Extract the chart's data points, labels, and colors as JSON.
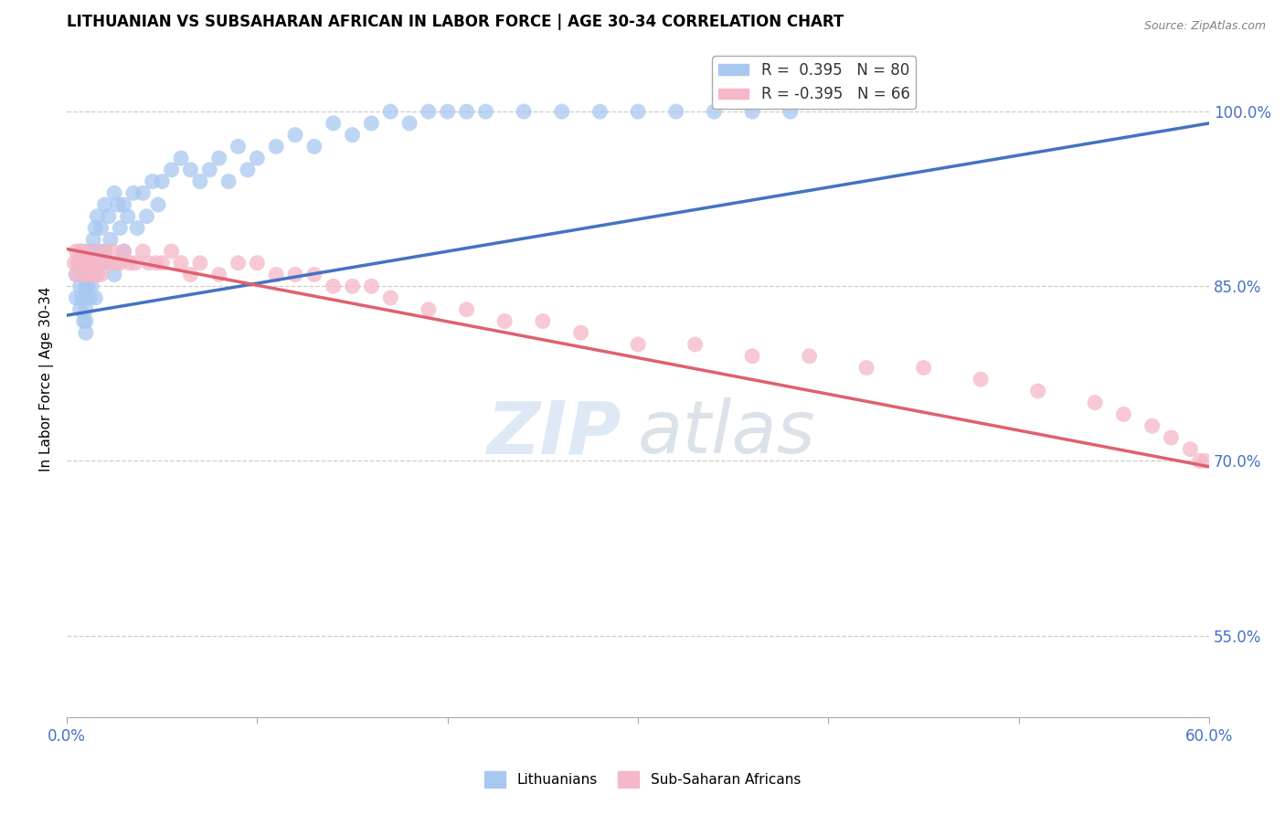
{
  "title": "LITHUANIAN VS SUBSAHARAN AFRICAN IN LABOR FORCE | AGE 30-34 CORRELATION CHART",
  "source": "Source: ZipAtlas.com",
  "ylabel": "In Labor Force | Age 30-34",
  "xlim": [
    0.0,
    0.6
  ],
  "ylim": [
    0.48,
    1.06
  ],
  "xticks": [
    0.0,
    0.1,
    0.2,
    0.3,
    0.4,
    0.5,
    0.6
  ],
  "yticks_right": [
    0.55,
    0.7,
    0.85,
    1.0
  ],
  "ytick_right_labels": [
    "55.0%",
    "70.0%",
    "85.0%",
    "100.0%"
  ],
  "legend_blue_r": "0.395",
  "legend_blue_n": "80",
  "legend_pink_r": "-0.395",
  "legend_pink_n": "66",
  "blue_color": "#A8C8F0",
  "pink_color": "#F5B8C8",
  "blue_line_color": "#4472C4",
  "pink_line_color": "#E06070",
  "background_color": "#FFFFFF",
  "watermark_zip": "ZIP",
  "watermark_atlas": "atlas",
  "blue_scatter_x": [
    0.005,
    0.005,
    0.006,
    0.007,
    0.007,
    0.008,
    0.008,
    0.009,
    0.009,
    0.01,
    0.01,
    0.01,
    0.01,
    0.01,
    0.01,
    0.01,
    0.011,
    0.011,
    0.012,
    0.012,
    0.013,
    0.013,
    0.014,
    0.014,
    0.015,
    0.015,
    0.015,
    0.016,
    0.016,
    0.017,
    0.018,
    0.019,
    0.02,
    0.02,
    0.022,
    0.023,
    0.025,
    0.025,
    0.027,
    0.028,
    0.03,
    0.03,
    0.032,
    0.035,
    0.037,
    0.04,
    0.042,
    0.045,
    0.048,
    0.05,
    0.055,
    0.06,
    0.065,
    0.07,
    0.075,
    0.08,
    0.085,
    0.09,
    0.095,
    0.1,
    0.11,
    0.12,
    0.13,
    0.14,
    0.15,
    0.16,
    0.17,
    0.18,
    0.19,
    0.2,
    0.21,
    0.22,
    0.24,
    0.26,
    0.28,
    0.3,
    0.32,
    0.34,
    0.36,
    0.38
  ],
  "blue_scatter_y": [
    0.86,
    0.84,
    0.87,
    0.85,
    0.83,
    0.88,
    0.84,
    0.86,
    0.82,
    0.87,
    0.86,
    0.85,
    0.84,
    0.83,
    0.82,
    0.81,
    0.87,
    0.85,
    0.88,
    0.84,
    0.88,
    0.85,
    0.89,
    0.86,
    0.9,
    0.87,
    0.84,
    0.91,
    0.86,
    0.88,
    0.9,
    0.87,
    0.92,
    0.88,
    0.91,
    0.89,
    0.93,
    0.86,
    0.92,
    0.9,
    0.92,
    0.88,
    0.91,
    0.93,
    0.9,
    0.93,
    0.91,
    0.94,
    0.92,
    0.94,
    0.95,
    0.96,
    0.95,
    0.94,
    0.95,
    0.96,
    0.94,
    0.97,
    0.95,
    0.96,
    0.97,
    0.98,
    0.97,
    0.99,
    0.98,
    0.99,
    1.0,
    0.99,
    1.0,
    1.0,
    1.0,
    1.0,
    1.0,
    1.0,
    1.0,
    1.0,
    1.0,
    1.0,
    1.0,
    1.0
  ],
  "pink_scatter_x": [
    0.004,
    0.005,
    0.005,
    0.006,
    0.007,
    0.008,
    0.009,
    0.01,
    0.01,
    0.011,
    0.012,
    0.012,
    0.013,
    0.014,
    0.015,
    0.015,
    0.016,
    0.017,
    0.018,
    0.019,
    0.02,
    0.022,
    0.024,
    0.026,
    0.028,
    0.03,
    0.033,
    0.036,
    0.04,
    0.043,
    0.047,
    0.05,
    0.055,
    0.06,
    0.065,
    0.07,
    0.08,
    0.09,
    0.1,
    0.11,
    0.12,
    0.13,
    0.14,
    0.15,
    0.16,
    0.17,
    0.19,
    0.21,
    0.23,
    0.25,
    0.27,
    0.3,
    0.33,
    0.36,
    0.39,
    0.42,
    0.45,
    0.48,
    0.51,
    0.54,
    0.555,
    0.57,
    0.58,
    0.59,
    0.595,
    0.598
  ],
  "pink_scatter_y": [
    0.87,
    0.88,
    0.86,
    0.87,
    0.88,
    0.87,
    0.86,
    0.87,
    0.88,
    0.87,
    0.86,
    0.87,
    0.87,
    0.86,
    0.88,
    0.86,
    0.87,
    0.87,
    0.86,
    0.87,
    0.88,
    0.87,
    0.88,
    0.87,
    0.87,
    0.88,
    0.87,
    0.87,
    0.88,
    0.87,
    0.87,
    0.87,
    0.88,
    0.87,
    0.86,
    0.87,
    0.86,
    0.87,
    0.87,
    0.86,
    0.86,
    0.86,
    0.85,
    0.85,
    0.85,
    0.84,
    0.83,
    0.83,
    0.82,
    0.82,
    0.81,
    0.8,
    0.8,
    0.79,
    0.79,
    0.78,
    0.78,
    0.77,
    0.76,
    0.75,
    0.74,
    0.73,
    0.72,
    0.71,
    0.7,
    0.7
  ]
}
